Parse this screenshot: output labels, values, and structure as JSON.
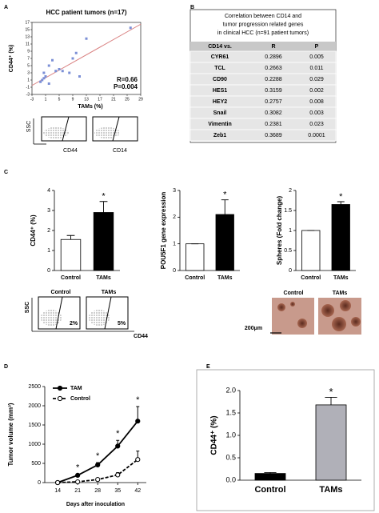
{
  "panels": [
    "A",
    "B",
    "C",
    "D",
    "E"
  ],
  "chart_data": [
    {
      "type": "scatter",
      "title": "HCC patient tumors (n=17)",
      "x_label": "TAMs (%)",
      "y_label": "CD44⁺ (%)",
      "x": [
        26,
        13,
        10,
        9,
        3,
        2,
        5,
        4,
        6,
        8,
        11,
        1,
        0.5,
        0,
        -0.5,
        2,
        0.5
      ],
      "y": [
        15.5,
        12.5,
        8.5,
        7,
        6.5,
        5,
        4,
        3.5,
        3.5,
        3,
        2,
        2,
        1.5,
        1,
        0.5,
        0,
        3
      ],
      "color": "#7b8fd6",
      "trendline": {
        "x": [
          -3,
          29
        ],
        "y": [
          -0.5,
          16.5
        ],
        "color": "#d98080"
      },
      "annotations": [
        "R=0.66",
        "P=0.004"
      ],
      "xlim": [
        -3,
        29
      ],
      "xticks": [
        -3,
        1,
        5,
        9,
        13,
        17,
        21,
        25,
        29
      ],
      "ylim": [
        -3,
        17
      ],
      "yticks": [
        -3,
        -1,
        1,
        3,
        5,
        7,
        9,
        11,
        13,
        15,
        17
      ]
    },
    {
      "type": "bar",
      "y_label": "CD44⁺ (%)",
      "categories": [
        "Control",
        "TAMs"
      ],
      "values": [
        1.55,
        2.9
      ],
      "errors": [
        0.2,
        0.55
      ],
      "colors": [
        "#ffffff",
        "#000000"
      ],
      "significance": [
        null,
        "*"
      ],
      "ylim": [
        0,
        4
      ],
      "yticks": [
        0,
        1,
        2,
        3,
        4
      ]
    },
    {
      "type": "bar",
      "y_label": "POU5F1 gene expression",
      "categories": [
        "Control",
        "TAMs"
      ],
      "values": [
        1,
        2.1
      ],
      "errors": [
        0,
        0.55
      ],
      "colors": [
        "#ffffff",
        "#000000"
      ],
      "significance": [
        null,
        "*"
      ],
      "ylim": [
        0,
        3
      ],
      "yticks": [
        0,
        1,
        2,
        3
      ]
    },
    {
      "type": "bar",
      "y_label": "Spheres (Fold change)",
      "categories": [
        "Control",
        "TAMs"
      ],
      "values": [
        1,
        1.65
      ],
      "errors": [
        0,
        0.07
      ],
      "colors": [
        "#ffffff",
        "#000000"
      ],
      "significance": [
        null,
        "*"
      ],
      "ylim": [
        0,
        2
      ],
      "yticks": [
        0,
        0.5,
        1,
        1.5,
        2
      ]
    },
    {
      "type": "line",
      "x_label": "Days after inoculation",
      "y_label": "Tumor volume (mm³)",
      "x": [
        14,
        21,
        28,
        35,
        42
      ],
      "series": [
        {
          "name": "TAM",
          "color": "#000000",
          "marker_fill": "#000000",
          "dashed": false,
          "values": [
            0,
            190,
            460,
            950,
            1600
          ],
          "errors": [
            0,
            30,
            60,
            150,
            380
          ]
        },
        {
          "name": "Control",
          "color": "#000000",
          "marker_fill": "#ffffff",
          "dashed": true,
          "values": [
            0,
            20,
            80,
            200,
            600
          ],
          "errors": [
            0,
            5,
            20,
            60,
            220
          ]
        }
      ],
      "significance": [
        null,
        "*",
        "*",
        "*",
        "*"
      ],
      "xlim": [
        9.5,
        45
      ],
      "xticks": [
        14,
        21,
        28,
        35,
        42
      ],
      "ylim": [
        0,
        2500
      ],
      "yticks": [
        0,
        500,
        1000,
        1500,
        2000,
        2500
      ]
    },
    {
      "type": "bar",
      "y_label": "CD44⁺ (%)",
      "categories": [
        "Control",
        "TAMs"
      ],
      "values": [
        0.15,
        1.68
      ],
      "errors": [
        0.02,
        0.17
      ],
      "colors": [
        "#000000",
        "#b0b0b8"
      ],
      "significance": [
        null,
        "*"
      ],
      "ylim": [
        0,
        2
      ],
      "yticks": [
        {
          "value": 0,
          "label": "0.0"
        },
        {
          "value": 0.5,
          "label": "0.5"
        },
        {
          "value": 1,
          "label": "1.0"
        },
        {
          "value": 1.5,
          "label": "1.5"
        },
        {
          "value": 2,
          "label": "2.0"
        }
      ]
    }
  ],
  "table": {
    "title": [
      "Correlation between CD14 and",
      "tumor progression related genes",
      "in clinical HCC (n=91 patient tumors)"
    ],
    "columns": [
      "CD14 vs.",
      "R",
      "P"
    ],
    "rows": [
      [
        "CYR61",
        "0.2896",
        "0.005"
      ],
      [
        "TCL",
        "0.2663",
        "0.011"
      ],
      [
        "CD90",
        "0.2288",
        "0.029"
      ],
      [
        "HES1",
        "0.3159",
        "0.002"
      ],
      [
        "HEY2",
        "0.2757",
        "0.008"
      ],
      [
        "Snail",
        "0.3082",
        "0.003"
      ],
      [
        "Vimentin",
        "0.2381",
        "0.023"
      ],
      [
        "Zeb1",
        "0.3689",
        "0.0001"
      ]
    ]
  },
  "flow_a": {
    "y_label": "SSC",
    "x_labels": [
      "CD44",
      "CD14"
    ]
  },
  "flow_c": {
    "y_label": "SSC",
    "x_label": "CD44",
    "titles": [
      "Control",
      "TAMs"
    ],
    "percents": [
      "2%",
      "5%"
    ]
  },
  "spheres": {
    "titles": [
      "Control",
      "TAMs"
    ],
    "scale": "200μm"
  }
}
